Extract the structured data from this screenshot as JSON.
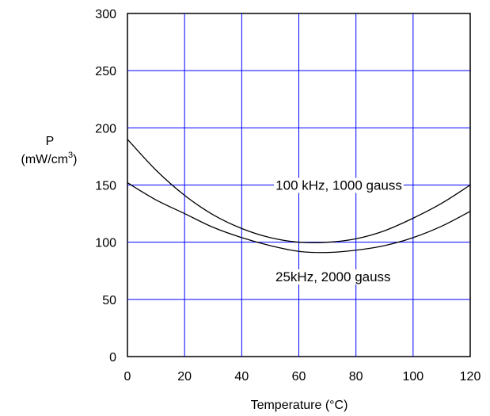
{
  "chart_data": {
    "type": "line",
    "title": "",
    "xlabel": "Temperature (°C)",
    "ylabel": {
      "symbol": "P",
      "unit_prefix": "(mW/cm",
      "unit_exp": "3",
      "unit_suffix": ")"
    },
    "xlim": [
      0,
      120
    ],
    "ylim": [
      0,
      300
    ],
    "x_ticks": [
      0,
      20,
      40,
      60,
      80,
      100,
      120
    ],
    "y_ticks": [
      0,
      50,
      100,
      150,
      200,
      250,
      300
    ],
    "grid": true,
    "grid_color": "#0000ff",
    "line_color": "#000000",
    "series": [
      {
        "name": "100 kHz, 1000 gauss",
        "x": [
          0,
          10,
          20,
          30,
          40,
          50,
          60,
          70,
          80,
          90,
          100,
          110,
          120
        ],
        "y": [
          190,
          163,
          141,
          124,
          112,
          104,
          100,
          100,
          103,
          110,
          121,
          134,
          150
        ]
      },
      {
        "name": "25kHz, 2000 gauss",
        "x": [
          0,
          10,
          20,
          30,
          40,
          50,
          60,
          70,
          80,
          90,
          100,
          110,
          120
        ],
        "y": [
          152,
          137,
          125,
          113,
          104,
          97,
          92,
          91,
          93,
          97,
          104,
          114,
          127
        ]
      }
    ],
    "series_labels": [
      {
        "text": "100 kHz, 1000 gauss",
        "x": 74,
        "y": 150
      },
      {
        "text": "25kHz, 2000 gauss",
        "x": 72,
        "y": 70
      }
    ]
  }
}
